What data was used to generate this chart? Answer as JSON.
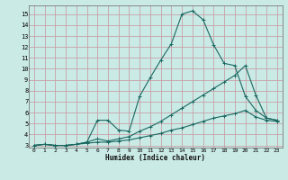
{
  "xlabel": "Humidex (Indice chaleur)",
  "bg_color": "#caeae6",
  "grid_color": "#c8a0a8",
  "line_color": "#1a6860",
  "xlim": [
    -0.5,
    23.5
  ],
  "ylim": [
    2.8,
    15.8
  ],
  "xticks": [
    0,
    1,
    2,
    3,
    4,
    5,
    6,
    7,
    8,
    9,
    10,
    11,
    12,
    13,
    14,
    15,
    16,
    17,
    18,
    19,
    20,
    21,
    22,
    23
  ],
  "yticks": [
    3,
    4,
    5,
    6,
    7,
    8,
    9,
    10,
    11,
    12,
    13,
    14,
    15
  ],
  "line1_x": [
    0,
    1,
    2,
    3,
    4,
    5,
    6,
    7,
    8,
    9,
    10,
    11,
    12,
    13,
    14,
    15,
    16,
    17,
    18,
    19,
    20,
    21,
    22,
    23
  ],
  "line1_y": [
    3.0,
    3.1,
    3.0,
    3.0,
    3.1,
    3.3,
    5.3,
    5.3,
    4.4,
    4.3,
    7.5,
    9.2,
    10.8,
    12.3,
    15.0,
    15.3,
    14.5,
    12.2,
    10.5,
    10.3,
    7.5,
    6.2,
    5.5,
    5.3
  ],
  "line2_x": [
    0,
    1,
    2,
    3,
    4,
    5,
    6,
    7,
    8,
    9,
    10,
    11,
    12,
    13,
    14,
    15,
    16,
    17,
    18,
    19,
    20,
    21,
    22,
    23
  ],
  "line2_y": [
    3.0,
    3.1,
    3.0,
    3.0,
    3.1,
    3.3,
    3.6,
    3.4,
    3.6,
    3.8,
    4.3,
    4.7,
    5.2,
    5.8,
    6.4,
    7.0,
    7.6,
    8.2,
    8.8,
    9.4,
    10.3,
    7.6,
    5.5,
    5.3
  ],
  "line3_x": [
    0,
    1,
    2,
    3,
    4,
    5,
    6,
    7,
    8,
    9,
    10,
    11,
    12,
    13,
    14,
    15,
    16,
    17,
    18,
    19,
    20,
    21,
    22,
    23
  ],
  "line3_y": [
    3.0,
    3.1,
    3.0,
    3.0,
    3.1,
    3.2,
    3.3,
    3.3,
    3.4,
    3.5,
    3.7,
    3.9,
    4.1,
    4.4,
    4.6,
    4.9,
    5.2,
    5.5,
    5.7,
    5.9,
    6.2,
    5.6,
    5.3,
    5.2
  ]
}
